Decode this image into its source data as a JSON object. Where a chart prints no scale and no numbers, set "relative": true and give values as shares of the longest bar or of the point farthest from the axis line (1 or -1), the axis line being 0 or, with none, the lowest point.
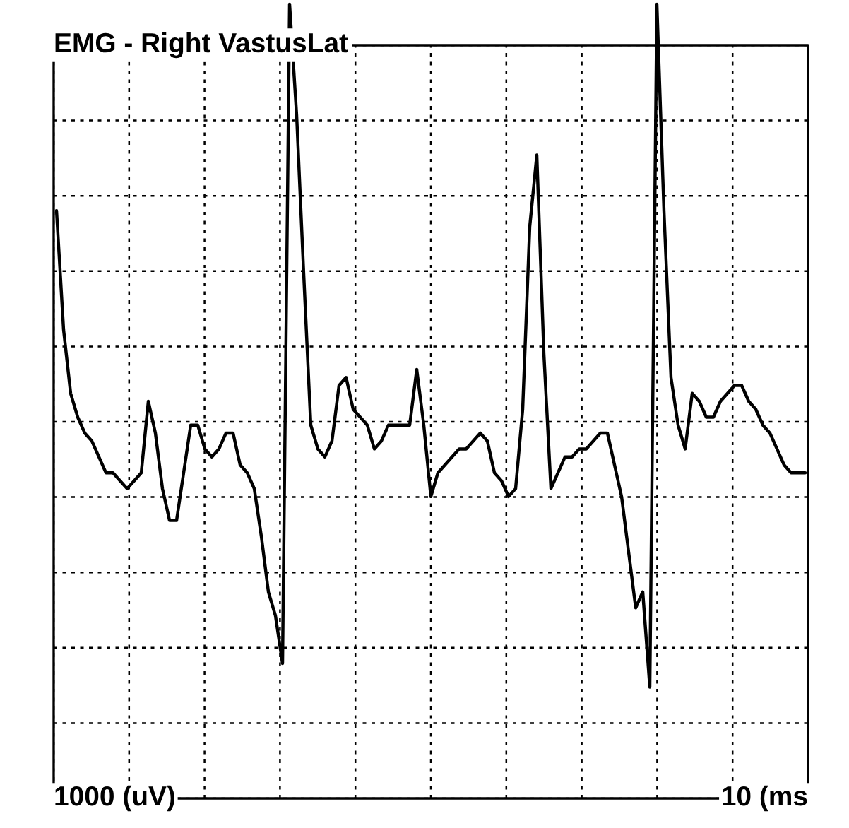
{
  "chart_data": {
    "type": "line",
    "title": "EMG - Right VastusLat",
    "relative": true,
    "grid": true,
    "line_style": "solid",
    "annotations": [
      "1000 (uV)",
      "10 (ms"
    ],
    "categories": [
      null,
      null,
      null,
      null,
      null,
      null,
      null,
      null,
      null,
      null,
      null,
      null,
      null,
      null,
      null,
      null,
      null,
      null,
      null,
      null,
      null,
      null,
      null,
      null,
      null,
      null,
      null,
      null,
      null,
      null,
      null,
      null,
      null,
      null,
      null,
      null,
      null,
      null,
      null,
      null,
      null,
      null,
      null,
      null,
      null,
      null,
      null,
      null,
      null,
      null,
      null,
      null,
      null,
      null,
      null,
      null,
      null,
      null,
      null,
      null,
      null,
      null,
      null,
      null,
      null,
      null,
      null,
      null,
      null,
      null,
      null,
      null,
      null,
      null,
      null,
      null,
      null,
      null,
      null,
      null,
      null,
      null,
      null,
      null,
      null,
      null,
      null,
      null,
      null,
      null,
      null,
      null,
      null,
      null,
      null,
      null,
      null,
      null,
      null,
      null,
      null,
      null,
      null,
      null,
      null,
      null,
      null
    ],
    "series": [
      {
        "color": "#000000",
        "values": [
          0.74,
          0.59,
          0.51,
          0.48,
          0.46,
          0.45,
          0.43,
          0.41,
          0.41,
          0.4,
          0.39,
          0.4,
          0.41,
          0.5,
          0.46,
          0.39,
          0.35,
          0.35,
          0.41,
          0.47,
          0.47,
          0.44,
          0.43,
          0.44,
          0.46,
          0.46,
          0.42,
          0.41,
          0.39,
          0.33,
          0.26,
          0.23,
          0.17,
          1.0,
          0.86,
          0.66,
          0.47,
          0.44,
          0.43,
          0.45,
          0.52,
          0.53,
          0.49,
          0.48,
          0.47,
          0.44,
          0.45,
          0.47,
          0.47,
          0.47,
          0.47,
          0.54,
          0.47,
          0.38,
          0.41,
          0.42,
          0.43,
          0.44,
          0.44,
          0.45,
          0.46,
          0.45,
          0.41,
          0.4,
          0.38,
          0.39,
          0.49,
          0.72,
          0.81,
          0.56,
          0.39,
          0.41,
          0.43,
          0.43,
          0.44,
          0.44,
          0.45,
          0.46,
          0.46,
          0.42,
          0.38,
          0.31,
          0.24,
          0.26,
          0.14,
          1.0,
          0.74,
          0.53,
          0.47,
          0.44,
          0.51,
          0.5,
          0.48,
          0.48,
          0.5,
          0.51,
          0.52,
          0.52,
          0.5,
          0.49,
          0.47,
          0.46,
          0.44,
          0.42,
          0.41,
          0.41,
          0.41
        ]
      }
    ]
  }
}
